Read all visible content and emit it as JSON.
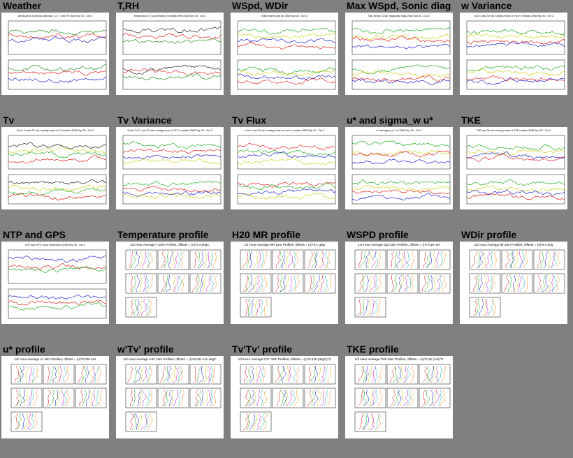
{
  "panels": [
    {
      "title": "Weather",
      "kind": "ts2",
      "caption": "Wind speed & median direction, u,v, T and RH   2008 Sep 30 - Oct 2",
      "colors": [
        "#008000",
        "#e00000",
        "#0000cc"
      ]
    },
    {
      "title": "T,RH",
      "kind": "ts2",
      "caption": "Temperature (T) and Relative Humidity (RH) 2008 Sep 30 - Oct 2",
      "colors": [
        "#000000",
        "#e00000",
        "#008000"
      ]
    },
    {
      "title": "WSpd, WDir",
      "kind": "ts2",
      "caption": "Wind Speed and Dir   2008 Sep 30 - Oct 2",
      "colors": [
        "#00a000",
        "#c8c800",
        "#0000cc",
        "#e00000"
      ]
    },
    {
      "title": "Max WSpd, Sonic diag",
      "kind": "ts2",
      "caption": "Max WSpd, CSAT diagnostic flags   2008 Sep 30 - Oct 2",
      "colors": [
        "#00a000",
        "#c8c800",
        "#e00000",
        "#0000cc"
      ]
    },
    {
      "title": "w Variance",
      "kind": "ts2",
      "caption": "<w'w'> and 30 min running mean of <w'w'> median 2008 Sep 30 - Oct 2",
      "colors": [
        "#00a000",
        "#c8c800",
        "#e00000",
        "#0000cc"
      ]
    },
    {
      "title": "Tv",
      "kind": "ts2",
      "caption": "Sonic Tv and 30 min running mean of Tv median 2008 Sep 30 - Oct 2",
      "colors": [
        "#000000",
        "#c8c800",
        "#00a000",
        "#e00000"
      ]
    },
    {
      "title": "Tv Variance",
      "kind": "ts2",
      "caption": "Sonic Tv'Tv' and 30 min running mean of Tv'Tv' median 2008 Sep 30 - Oct 2",
      "colors": [
        "#00a000",
        "#e00000",
        "#0000cc",
        "#c8c800"
      ]
    },
    {
      "title": "Tv Flux",
      "kind": "ts2",
      "caption": "<w'tc'> and 30 min running mean of <w'tc'> median 2008 Sep 30 - Oct 2",
      "colors": [
        "#e00000",
        "#00a000",
        "#0000cc",
        "#c8c800"
      ]
    },
    {
      "title": "u* and sigma_w u*",
      "kind": "ts2",
      "caption": "u* and sigma_w / u*  2008 Sep 30 - Oct 2",
      "colors": [
        "#00a000",
        "#c8c800",
        "#e00000",
        "#0000cc"
      ]
    },
    {
      "title": "TKE",
      "kind": "ts2",
      "caption": "TKE and 30 min running mean of TKE median 2008 Sep 30 - Oct 2",
      "colors": [
        "#00a000",
        "#c8c800",
        "#0000cc",
        "#e00000"
      ]
    },
    {
      "title": "NTP and GPS",
      "kind": "ts2",
      "caption": "NTP and GPS Clock Parameters 2008 Sep 30 - Oct 2",
      "colors": [
        "#0000cc",
        "#e00000",
        "#00a000"
      ]
    },
    {
      "title": "Temperature profile",
      "kind": "prof",
      "caption": "1/2 Hour Average T.16m Profiles; offsets = (n)*0.4 degC",
      "colors": [
        "#e00000",
        "#00a000",
        "#0000cc",
        "#c8c800",
        "#cc00cc",
        "#00aaaa",
        "#ff8800"
      ]
    },
    {
      "title": "H20 MR profile",
      "kind": "prof",
      "caption": "1/2 Hour Average MR.16m Profiles; offsets = (n)*0.1 g/kg",
      "colors": [
        "#e00000",
        "#00a000",
        "#0000cc",
        "#c8c800",
        "#cc00cc",
        "#00aaaa",
        "#ff8800"
      ]
    },
    {
      "title": "WSPD profile",
      "kind": "prof",
      "caption": "1/2 Hour Average spd.16m Profiles; offsets = (n)*0.18 m/s",
      "colors": [
        "#e00000",
        "#00a000",
        "#0000cc",
        "#c8c800",
        "#cc00cc",
        "#00aaaa",
        "#ff8800"
      ]
    },
    {
      "title": "WDir profile",
      "kind": "prof",
      "caption": "1/2 Hour Average dir.16m Profiles; offsets = (n)*6.4 deg",
      "colors": [
        "#e00000",
        "#00a000",
        "#0000cc",
        "#c8c800",
        "#cc00cc",
        "#00aaaa",
        "#ff8800"
      ]
    },
    {
      "title": "u* profile",
      "kind": "prof",
      "caption": "1/2 Hour Average u*.16m Profiles; offsets = (n)*0.026 m/s",
      "colors": [
        "#e00000",
        "#00a000",
        "#0000cc",
        "#c8c800",
        "#cc00cc",
        "#00aaaa",
        "#ff8800"
      ]
    },
    {
      "title": "w'Tv' profile",
      "kind": "prof",
      "caption": "1/2 Hour Average w'tc'.16m Profiles; offsets = (n)*0.011 m/s degC",
      "colors": [
        "#e00000",
        "#00a000",
        "#0000cc",
        "#c8c800",
        "#cc00cc",
        "#00aaaa",
        "#ff8800"
      ]
    },
    {
      "title": "Tv'Tv' profile",
      "kind": "prof",
      "caption": "1/2 Hour Average tc'tc'.16m Profiles; offsets = (n)*0.016 (degC)^2",
      "colors": [
        "#e00000",
        "#00a000",
        "#0000cc",
        "#c8c800",
        "#cc00cc",
        "#00aaaa",
        "#ff8800"
      ]
    },
    {
      "title": "TKE profile",
      "kind": "prof",
      "caption": "1/2 Hour Average TKE.16m Profiles; offsets = (n)*0.18 (m/s)^2",
      "colors": [
        "#e00000",
        "#00a000",
        "#0000cc",
        "#c8c800",
        "#cc00cc",
        "#00aaaa",
        "#ff8800"
      ]
    }
  ]
}
